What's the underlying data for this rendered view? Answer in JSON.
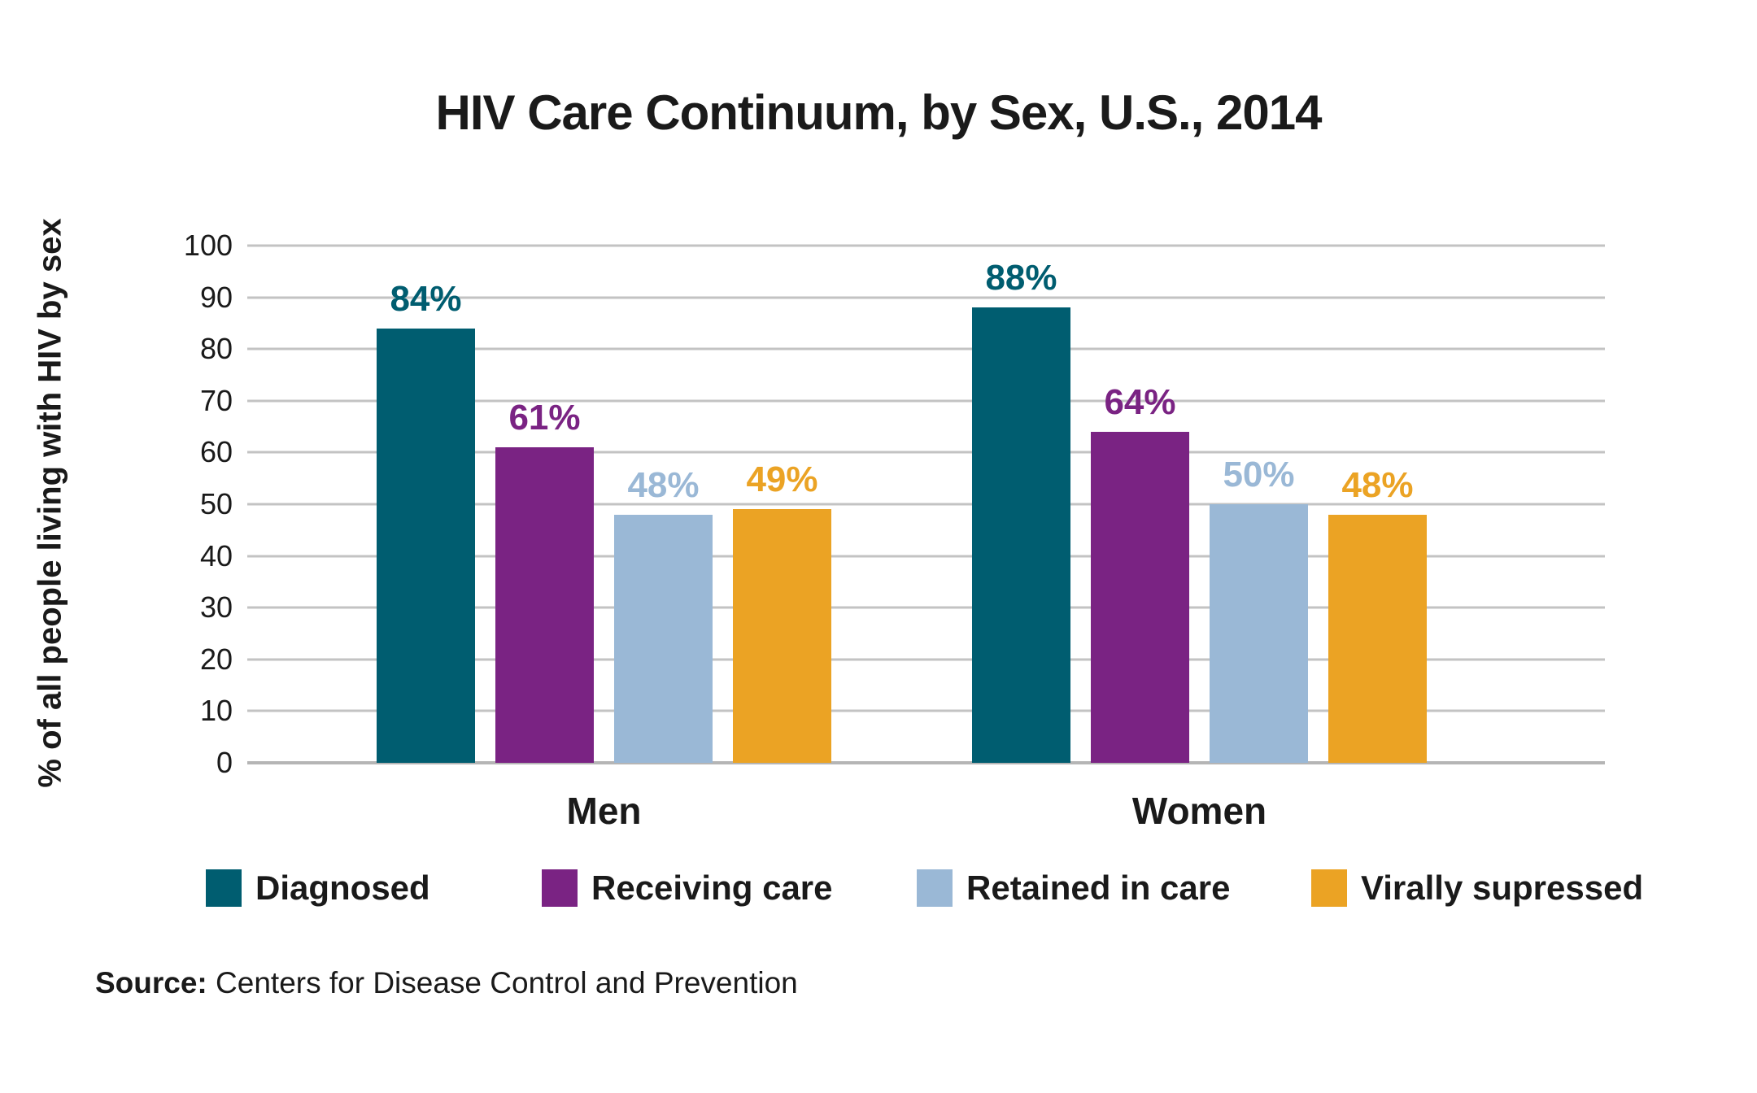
{
  "title": "HIV Care Continuum, by Sex, U.S., 2014",
  "chart_data": {
    "type": "bar",
    "title": "HIV Care Continuum, by Sex, U.S., 2014",
    "xlabel": "",
    "ylabel": "% of all people living with HIV by sex",
    "ylim": [
      0,
      100
    ],
    "yticks": [
      0,
      10,
      20,
      30,
      40,
      50,
      60,
      70,
      80,
      90,
      100
    ],
    "grid": true,
    "legend_position": "bottom",
    "categories": [
      "Men",
      "Women"
    ],
    "series": [
      {
        "name": "Diagnosed",
        "color": "#005D70",
        "values": [
          84,
          88
        ]
      },
      {
        "name": "Receiving care",
        "color": "#7A2383",
        "values": [
          61,
          64
        ]
      },
      {
        "name": "Retained in care",
        "color": "#9AB8D6",
        "values": [
          48,
          50
        ]
      },
      {
        "name": "Virally supressed",
        "color": "#EBA324",
        "values": [
          49,
          48
        ]
      }
    ],
    "value_label_format": "{v}%"
  },
  "source": {
    "label": "Source:",
    "text": " Centers for Disease Control and Prevention"
  },
  "colors": {
    "background": "#ffffff",
    "gridline": "#c3c3c3",
    "axis_line": "#b5b5b5",
    "text": "#1a1a1a"
  }
}
